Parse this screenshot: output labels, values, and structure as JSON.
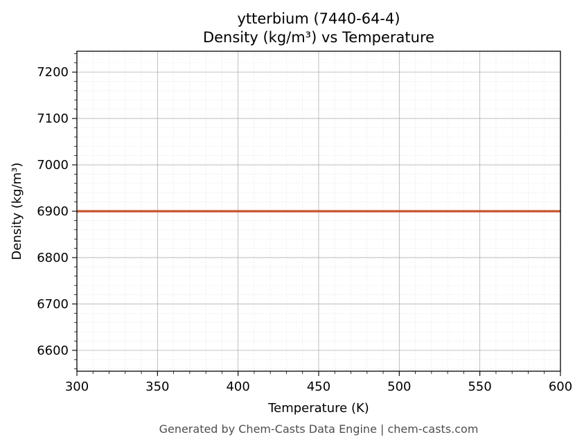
{
  "chart_data": {
    "type": "line",
    "title": "ytterbium (7440-64-4)",
    "subtitle": "Density (kg/m³) vs Temperature",
    "xlabel": "Temperature (K)",
    "ylabel": "Density (kg/m³)",
    "xlim": [
      300,
      600
    ],
    "ylim": [
      6555,
      7245
    ],
    "x_ticks": [
      300,
      350,
      400,
      450,
      500,
      550,
      600
    ],
    "y_ticks": [
      6600,
      6700,
      6800,
      6900,
      7000,
      7100,
      7200
    ],
    "grid": true,
    "minor_grid": true,
    "series": [
      {
        "color": "#c8532a",
        "x": [
          300,
          600
        ],
        "y": [
          6900,
          6900
        ]
      }
    ]
  },
  "footer": "Generated by Chem-Casts Data Engine | chem-casts.com"
}
